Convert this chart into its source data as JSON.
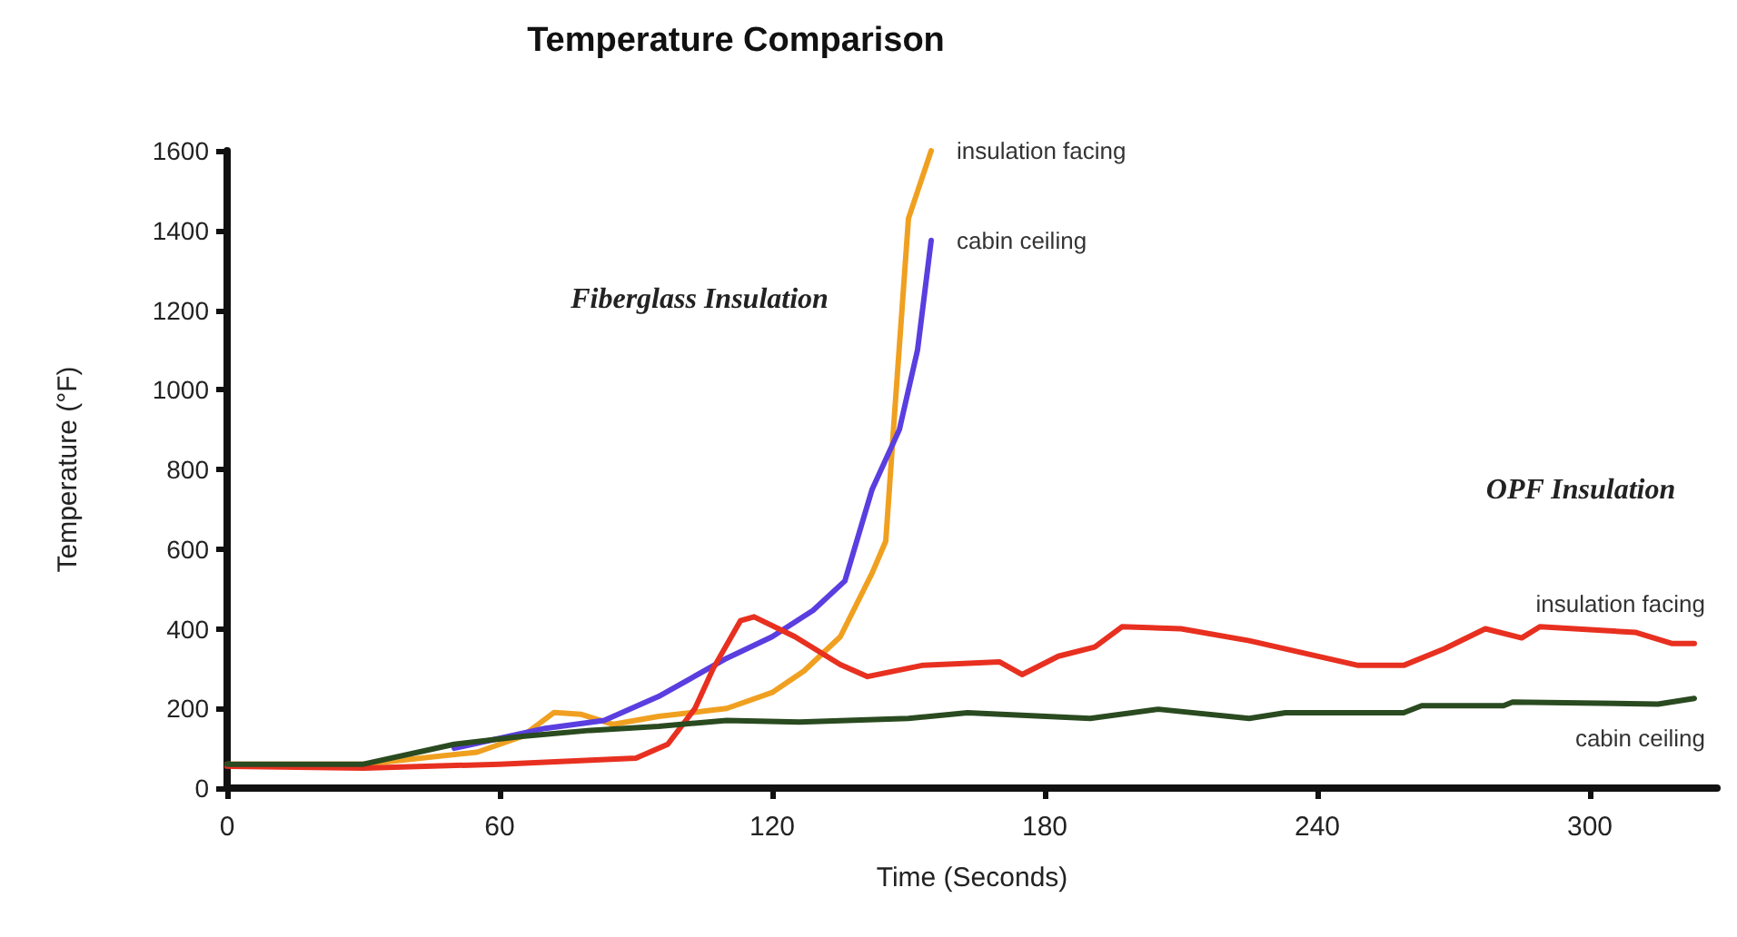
{
  "chart_data": {
    "type": "line",
    "title": "Temperature Comparison",
    "xlabel": "Time (Seconds)",
    "ylabel": "Temperature (°F)",
    "xlim": [
      0,
      328
    ],
    "xticks": [
      0,
      60,
      120,
      180,
      240,
      300
    ],
    "ylim": [
      0,
      1600
    ],
    "yticks": [
      0,
      200,
      400,
      600,
      800,
      1000,
      1200,
      1400,
      1600
    ],
    "grid": false,
    "legend": false,
    "marker": "none",
    "line_style": "solid",
    "annotations": [
      "Fiberglass Insulation",
      "OPF Insulation"
    ],
    "series": [
      {
        "name": "insulation facing",
        "color": "#f0a020",
        "x": [
          0,
          30,
          55,
          65,
          72,
          78,
          85,
          95,
          110,
          120,
          127,
          135,
          142,
          145,
          147,
          150,
          155
        ],
        "values": [
          60,
          60,
          90,
          130,
          190,
          185,
          160,
          180,
          200,
          240,
          294,
          380,
          540,
          620,
          950,
          1430,
          1600
        ]
      },
      {
        "name": "cabin ceiling",
        "color": "#5a3ee0",
        "x": [
          50,
          70,
          83,
          95,
          110,
          120,
          129,
          136,
          142,
          148,
          152,
          155
        ],
        "values": [
          100,
          150,
          170,
          230,
          326,
          380,
          446,
          520,
          750,
          900,
          1100,
          1375
        ]
      },
      {
        "name": "insulation facing",
        "color": "#e83020",
        "x": [
          0,
          30,
          60,
          90,
          97,
          103,
          107,
          113,
          116,
          125,
          135,
          141,
          153,
          170,
          175,
          183,
          191,
          197,
          210,
          225,
          249,
          259,
          268,
          277,
          285,
          289,
          310,
          318,
          323
        ],
        "values": [
          55,
          50,
          60,
          75,
          110,
          200,
          300,
          420,
          430,
          380,
          310,
          280,
          308,
          317,
          285,
          331,
          354,
          405,
          400,
          370,
          308,
          308,
          350,
          400,
          377,
          405,
          391,
          363,
          363
        ]
      },
      {
        "name": "cabin ceiling",
        "color": "#2a4a20",
        "x": [
          0,
          30,
          50,
          65,
          80,
          95,
          110,
          126,
          150,
          163,
          190,
          205,
          225,
          233,
          259,
          263,
          281,
          283,
          315,
          323
        ],
        "values": [
          60,
          60,
          110,
          130,
          145,
          155,
          170,
          166,
          175,
          189,
          175,
          198,
          175,
          189,
          189,
          207,
          207,
          216,
          211,
          225
        ]
      }
    ]
  }
}
